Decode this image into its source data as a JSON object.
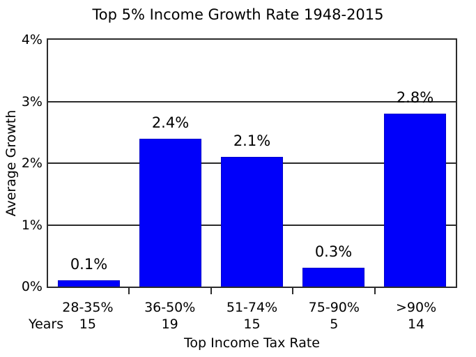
{
  "title": "Top 5% Income Growth Rate 1948-2015",
  "chart_data": {
    "type": "bar",
    "title": "Top 5% Income Growth Rate 1948-2015",
    "xlabel": "Top Income Tax Rate",
    "ylabel": "Average Growth",
    "categories": [
      "28-35%",
      "36-50%",
      "51-74%",
      "75-90%",
      ">90%"
    ],
    "values": [
      0.1,
      2.4,
      2.1,
      0.3,
      2.8
    ],
    "bar_value_labels": [
      "0.1%",
      "2.4%",
      "2.1%",
      "0.3%",
      "2.8%"
    ],
    "years_row": {
      "label": "Years",
      "values": [
        "15",
        "19",
        "15",
        "5",
        "14"
      ]
    },
    "ylim": [
      0,
      4
    ],
    "yticks": [
      0,
      1,
      2,
      3,
      4
    ],
    "ytick_labels": [
      "0%",
      "1%",
      "2%",
      "3%",
      "4%"
    ],
    "gridlines_at": [
      1,
      2,
      3
    ],
    "legend": "none",
    "grid": "horizontal solid lines at 1%, 2%, 3%",
    "colors": {
      "bar_fill": "#0000fa",
      "bar_edge": "#0000c8",
      "axis": "#2b2b2b",
      "text": "#000000",
      "background": "#ffffff"
    }
  }
}
